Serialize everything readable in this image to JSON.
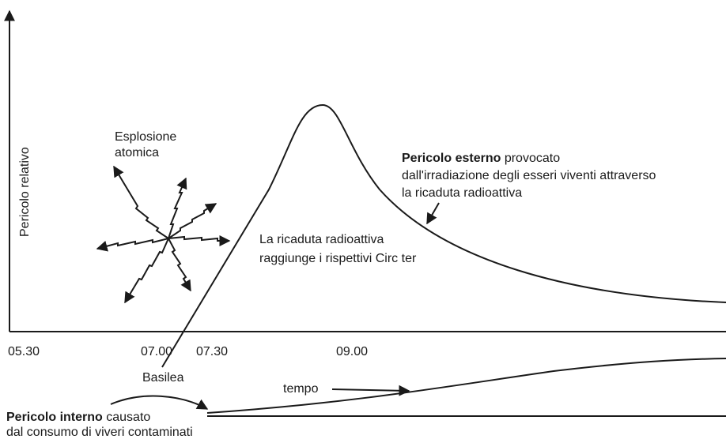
{
  "y_axis_label": "Pericolo relativo",
  "x_labels": [
    "05.30",
    "07.00",
    "07.30",
    "09.00"
  ],
  "explosion": [
    "Esplosione",
    "atomica"
  ],
  "external": {
    "bold": "Pericolo esterno",
    "rest": " provocato",
    "line2": "dall'irradiazione degli esseri viventi attraverso",
    "line3": "la ricaduta radioattiva"
  },
  "fallout": [
    "La ricaduta radioattiva",
    "raggiunge i rispettivi Circ ter"
  ],
  "basel": "Basilea",
  "time": "tempo",
  "internal": {
    "bold": "Pericolo interno",
    "rest": " causato",
    "line2": "dal consumo di viveri contaminati"
  }
}
